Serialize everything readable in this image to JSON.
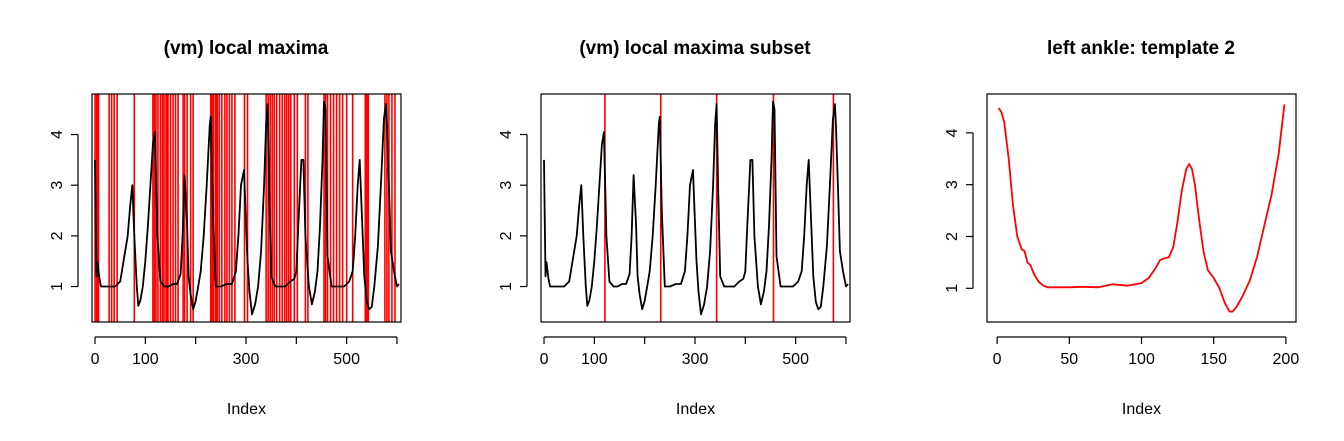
{
  "chart_data": [
    {
      "type": "line",
      "title": "(vm) local maxima",
      "xlabel": "Index",
      "ylabel": "",
      "xlim": [
        -6,
        608
      ],
      "ylim": [
        0.3,
        4.8
      ],
      "xticks": [
        0,
        100,
        200,
        300,
        400,
        500,
        600
      ],
      "xtick_labels": [
        "0",
        "100",
        "",
        "300",
        "",
        "500",
        ""
      ],
      "yticks": [
        1,
        2,
        3,
        4
      ],
      "ytick_labels": [
        "1",
        "2",
        "3",
        "4"
      ],
      "series": [
        {
          "color": "#000000",
          "x": [
            0,
            3,
            5,
            9,
            12,
            15,
            20,
            30,
            40,
            50,
            55,
            60,
            65,
            70,
            74,
            78,
            83,
            86,
            90,
            95,
            100,
            105,
            110,
            115,
            119,
            124,
            130,
            138,
            146,
            155,
            163,
            170,
            174,
            178,
            183,
            186,
            190,
            195,
            200,
            205,
            210,
            216,
            222,
            228,
            230,
            234,
            240,
            250,
            262,
            272,
            280,
            285,
            290,
            296,
            299,
            303,
            307,
            312,
            318,
            324,
            330,
            336,
            340,
            343,
            346,
            350,
            358,
            368,
            378,
            388,
            396,
            400,
            404,
            410,
            414,
            418,
            425,
            431,
            437,
            442,
            447,
            452,
            455,
            458,
            462,
            470,
            482,
            495,
            505,
            512,
            517,
            522,
            526,
            530,
            535,
            540,
            545,
            550,
            555,
            562,
            568,
            574,
            578,
            580,
            584,
            588,
            594,
            600,
            604
          ],
          "y": [
            3.5,
            1.2,
            1.48,
            1.15,
            1.0,
            1.0,
            1.0,
            1.0,
            1.0,
            1.1,
            1.4,
            1.7,
            2.0,
            2.6,
            3.0,
            2.0,
            1.0,
            0.62,
            0.72,
            1.0,
            1.5,
            2.2,
            3.0,
            3.8,
            4.05,
            2.0,
            1.1,
            1.0,
            1.0,
            1.05,
            1.05,
            1.25,
            2.0,
            3.2,
            2.2,
            1.2,
            0.85,
            0.55,
            0.72,
            1.0,
            1.3,
            2.0,
            3.0,
            4.2,
            4.35,
            2.5,
            1.0,
            1.0,
            1.05,
            1.05,
            1.3,
            2.0,
            3.0,
            3.3,
            2.5,
            1.5,
            0.9,
            0.45,
            0.65,
            1.0,
            1.7,
            3.0,
            4.2,
            4.6,
            3.0,
            1.2,
            1.0,
            1.0,
            1.0,
            1.1,
            1.15,
            1.3,
            2.2,
            3.5,
            3.5,
            2.0,
            1.0,
            0.65,
            0.9,
            1.3,
            2.2,
            3.5,
            4.65,
            4.5,
            1.6,
            1.0,
            1.0,
            1.0,
            1.1,
            1.3,
            2.0,
            3.0,
            3.5,
            2.5,
            1.2,
            0.7,
            0.55,
            0.6,
            1.0,
            1.8,
            3.0,
            4.3,
            4.6,
            4.2,
            3.0,
            1.7,
            1.3,
            1.0,
            1.05
          ]
        }
      ],
      "vlines": {
        "color": "#ff0000",
        "x": [
          0,
          3,
          5,
          7,
          28,
          33,
          38,
          44,
          78,
          115,
          118,
          121,
          125,
          130,
          134,
          137,
          141,
          143,
          145,
          150,
          155,
          160,
          165,
          175,
          178,
          183,
          190,
          195,
          230,
          233,
          236,
          240,
          243,
          247,
          252,
          258,
          262,
          267,
          272,
          278,
          297,
          303,
          340,
          344,
          348,
          352,
          356,
          361,
          367,
          372,
          377,
          381,
          385,
          389,
          396,
          402,
          418,
          423,
          455,
          458,
          462,
          468,
          474,
          480,
          486,
          492,
          500,
          512,
          537,
          540,
          543,
          576,
          580,
          584,
          590,
          596
        ]
      }
    },
    {
      "type": "line",
      "title": "(vm) local maxima subset",
      "xlabel": "Index",
      "ylabel": "",
      "xlim": [
        -6,
        608
      ],
      "ylim": [
        0.3,
        4.8
      ],
      "xticks": [
        0,
        100,
        200,
        300,
        400,
        500,
        600
      ],
      "xtick_labels": [
        "0",
        "100",
        "",
        "300",
        "",
        "500",
        ""
      ],
      "yticks": [
        1,
        2,
        3,
        4
      ],
      "ytick_labels": [
        "1",
        "2",
        "3",
        "4"
      ],
      "series": [
        {
          "color": "#000000",
          "x": [
            0,
            3,
            5,
            9,
            12,
            15,
            20,
            30,
            40,
            50,
            55,
            60,
            65,
            70,
            74,
            78,
            83,
            86,
            90,
            95,
            100,
            105,
            110,
            115,
            119,
            124,
            130,
            138,
            146,
            155,
            163,
            170,
            174,
            178,
            183,
            186,
            190,
            195,
            200,
            205,
            210,
            216,
            222,
            228,
            230,
            234,
            240,
            250,
            262,
            272,
            280,
            285,
            290,
            296,
            299,
            303,
            307,
            312,
            318,
            324,
            330,
            336,
            340,
            343,
            346,
            350,
            358,
            368,
            378,
            388,
            396,
            400,
            404,
            410,
            414,
            418,
            425,
            431,
            437,
            442,
            447,
            452,
            455,
            458,
            462,
            470,
            482,
            495,
            505,
            512,
            517,
            522,
            526,
            530,
            535,
            540,
            545,
            550,
            555,
            562,
            568,
            574,
            578,
            580,
            584,
            588,
            594,
            600,
            604
          ],
          "y": [
            3.5,
            1.2,
            1.48,
            1.15,
            1.0,
            1.0,
            1.0,
            1.0,
            1.0,
            1.1,
            1.4,
            1.7,
            2.0,
            2.6,
            3.0,
            2.0,
            1.0,
            0.62,
            0.72,
            1.0,
            1.5,
            2.2,
            3.0,
            3.8,
            4.05,
            2.0,
            1.1,
            1.0,
            1.0,
            1.05,
            1.05,
            1.25,
            2.0,
            3.2,
            2.2,
            1.2,
            0.85,
            0.55,
            0.72,
            1.0,
            1.3,
            2.0,
            3.0,
            4.2,
            4.35,
            2.5,
            1.0,
            1.0,
            1.05,
            1.05,
            1.3,
            2.0,
            3.0,
            3.3,
            2.5,
            1.5,
            0.9,
            0.45,
            0.65,
            1.0,
            1.7,
            3.0,
            4.2,
            4.6,
            3.0,
            1.2,
            1.0,
            1.0,
            1.0,
            1.1,
            1.15,
            1.3,
            2.2,
            3.5,
            3.5,
            2.0,
            1.0,
            0.65,
            0.9,
            1.3,
            2.2,
            3.5,
            4.65,
            4.5,
            1.6,
            1.0,
            1.0,
            1.0,
            1.1,
            1.3,
            2.0,
            3.0,
            3.5,
            2.5,
            1.2,
            0.7,
            0.55,
            0.6,
            1.0,
            1.8,
            3.0,
            4.3,
            4.6,
            4.2,
            3.0,
            1.7,
            1.3,
            1.0,
            1.05
          ]
        }
      ],
      "vlines": {
        "color": "#ff0000",
        "x": [
          121,
          232,
          343,
          456,
          575
        ]
      }
    },
    {
      "type": "line",
      "title": "left ankle: template 2",
      "xlabel": "Index",
      "ylabel": "",
      "xlim": [
        -7,
        207
      ],
      "ylim": [
        0.35,
        4.75
      ],
      "xticks": [
        0,
        50,
        100,
        150,
        200
      ],
      "xtick_labels": [
        "0",
        "50",
        "100",
        "150",
        "200"
      ],
      "yticks": [
        1,
        2,
        3,
        4
      ],
      "ytick_labels": [
        "1",
        "2",
        "3",
        "4"
      ],
      "series": [
        {
          "color": "#ff0000",
          "x": [
            1,
            3,
            5,
            8,
            11,
            14,
            17,
            19,
            21,
            23,
            26,
            29,
            32,
            35,
            40,
            50,
            60,
            70,
            75,
            80,
            90,
            100,
            105,
            110,
            113,
            116,
            119,
            122,
            125,
            128,
            131,
            133,
            135,
            137,
            140,
            143,
            146,
            150,
            154,
            158,
            161,
            163,
            166,
            170,
            175,
            180,
            185,
            190,
            195,
            199
          ],
          "y": [
            4.48,
            4.4,
            4.2,
            3.5,
            2.6,
            2.0,
            1.75,
            1.72,
            1.5,
            1.45,
            1.25,
            1.12,
            1.05,
            1.02,
            1.02,
            1.02,
            1.03,
            1.02,
            1.05,
            1.08,
            1.05,
            1.1,
            1.2,
            1.4,
            1.55,
            1.58,
            1.6,
            1.8,
            2.3,
            2.9,
            3.3,
            3.4,
            3.3,
            3.0,
            2.3,
            1.7,
            1.35,
            1.2,
            1.0,
            0.7,
            0.55,
            0.55,
            0.65,
            0.85,
            1.15,
            1.6,
            2.2,
            2.8,
            3.6,
            4.55
          ]
        }
      ],
      "vlines": {
        "color": "#ff0000",
        "x": []
      }
    }
  ]
}
